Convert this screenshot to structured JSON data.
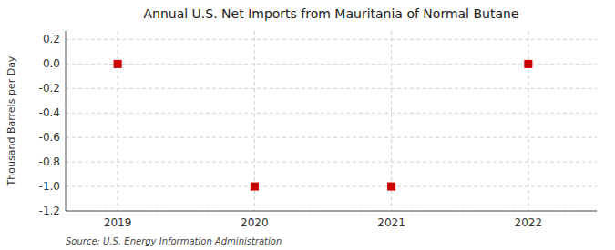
{
  "chart_data": {
    "type": "scatter",
    "title": "Annual U.S. Net Imports from Mauritania of Normal Butane",
    "ylabel": "Thousand Barrels per Day",
    "source": "Source: U.S. Energy Information Administration",
    "x": [
      2019,
      2020,
      2021,
      2022
    ],
    "values": [
      0,
      -1,
      -1,
      0
    ],
    "color": "#cc0000",
    "marker": "square",
    "xlim": [
      2018.62,
      2022.5
    ],
    "ylim": [
      -1.2,
      0.27
    ],
    "xticks": [
      2019,
      2020,
      2021,
      2022
    ],
    "yticks": [
      0.2,
      {
        "value": 0,
        "label": "0.0"
      },
      -0.2,
      -0.4,
      -0.6,
      -0.8,
      {
        "value": -1,
        "label": "-1.0"
      },
      -1.2
    ],
    "grid": true
  }
}
